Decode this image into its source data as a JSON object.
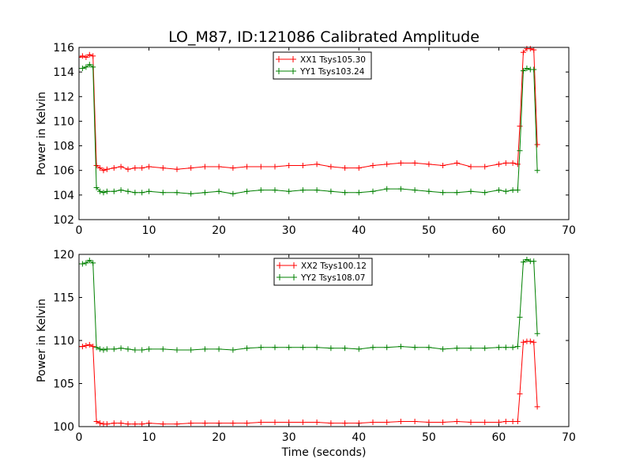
{
  "figure": {
    "title": "LO_M87, ID:121086 Calibrated Amplitude"
  },
  "chart_data": [
    {
      "type": "line",
      "title": "LO_M87, ID:121086 Calibrated Amplitude",
      "xlabel": "",
      "ylabel": "Power in Kelvin",
      "xlim": [
        0,
        70
      ],
      "ylim": [
        102,
        116
      ],
      "xticks": [
        0,
        10,
        20,
        30,
        40,
        50,
        60,
        70
      ],
      "yticks": [
        102,
        104,
        106,
        108,
        110,
        112,
        114,
        116
      ],
      "grid": false,
      "legend_position": "top-center",
      "series": [
        {
          "name": "XX1 Tsys105.30",
          "color": "#ff0000",
          "x": [
            0,
            0.5,
            1,
            1.5,
            2,
            2.5,
            3,
            3.5,
            4,
            5,
            6,
            7,
            8,
            9,
            10,
            12,
            14,
            16,
            18,
            20,
            22,
            24,
            26,
            28,
            30,
            32,
            34,
            36,
            38,
            40,
            42,
            44,
            46,
            48,
            50,
            52,
            54,
            56,
            58,
            60,
            61,
            62,
            62.7,
            63,
            63.5,
            64,
            64.5,
            65,
            65.5
          ],
          "y": [
            115.2,
            115.3,
            115.2,
            115.4,
            115.3,
            106.4,
            106.2,
            106.0,
            106.1,
            106.2,
            106.3,
            106.1,
            106.2,
            106.2,
            106.3,
            106.2,
            106.1,
            106.2,
            106.3,
            106.3,
            106.2,
            106.3,
            106.3,
            106.3,
            106.4,
            106.4,
            106.5,
            106.3,
            106.2,
            106.2,
            106.4,
            106.5,
            106.6,
            106.6,
            106.5,
            106.4,
            106.6,
            106.3,
            106.3,
            106.5,
            106.6,
            106.6,
            106.5,
            109.6,
            115.6,
            115.9,
            115.9,
            115.8,
            108.1
          ]
        },
        {
          "name": "YY1 Tsys103.24",
          "color": "#008000",
          "x": [
            0,
            0.5,
            1,
            1.5,
            2,
            2.5,
            3,
            3.5,
            4,
            5,
            6,
            7,
            8,
            9,
            10,
            12,
            14,
            16,
            18,
            20,
            22,
            24,
            26,
            28,
            30,
            32,
            34,
            36,
            38,
            40,
            42,
            44,
            46,
            48,
            50,
            52,
            54,
            56,
            58,
            60,
            61,
            62,
            62.7,
            63,
            63.5,
            64,
            64.5,
            65,
            65.5
          ],
          "y": [
            114.3,
            114.3,
            114.4,
            114.6,
            114.4,
            104.6,
            104.3,
            104.2,
            104.3,
            104.3,
            104.4,
            104.3,
            104.2,
            104.2,
            104.3,
            104.2,
            104.2,
            104.1,
            104.2,
            104.3,
            104.1,
            104.3,
            104.4,
            104.4,
            104.3,
            104.4,
            104.4,
            104.3,
            104.2,
            104.2,
            104.3,
            104.5,
            104.5,
            104.4,
            104.3,
            104.2,
            104.2,
            104.3,
            104.2,
            104.4,
            104.3,
            104.4,
            104.4,
            107.6,
            114.1,
            114.3,
            114.2,
            114.2,
            106.0
          ]
        }
      ]
    },
    {
      "type": "line",
      "title": "",
      "xlabel": "Time (seconds)",
      "ylabel": "Power in Kelvin",
      "xlim": [
        0,
        70
      ],
      "ylim": [
        100,
        120
      ],
      "xticks": [
        0,
        10,
        20,
        30,
        40,
        50,
        60,
        70
      ],
      "yticks": [
        100,
        105,
        110,
        115,
        120
      ],
      "grid": false,
      "legend_position": "top-center",
      "series": [
        {
          "name": "XX2 Tsys100.12",
          "color": "#ff0000",
          "x": [
            0,
            0.5,
            1,
            1.5,
            2,
            2.5,
            3,
            3.5,
            4,
            5,
            6,
            7,
            8,
            9,
            10,
            12,
            14,
            16,
            18,
            20,
            22,
            24,
            26,
            28,
            30,
            32,
            34,
            36,
            38,
            40,
            42,
            44,
            46,
            48,
            50,
            52,
            54,
            56,
            58,
            60,
            61,
            62,
            62.7,
            63,
            63.5,
            64,
            64.5,
            65,
            65.5
          ],
          "y": [
            109.3,
            109.3,
            109.4,
            109.5,
            109.3,
            100.6,
            100.4,
            100.3,
            100.3,
            100.4,
            100.4,
            100.3,
            100.3,
            100.3,
            100.4,
            100.3,
            100.3,
            100.4,
            100.4,
            100.4,
            100.4,
            100.4,
            100.5,
            100.5,
            100.5,
            100.5,
            100.5,
            100.4,
            100.4,
            100.4,
            100.5,
            100.5,
            100.6,
            100.6,
            100.5,
            100.5,
            100.6,
            100.5,
            100.5,
            100.5,
            100.6,
            100.6,
            100.6,
            103.8,
            109.8,
            109.9,
            109.9,
            109.8,
            102.3
          ]
        },
        {
          "name": "YY2 Tsys108.07",
          "color": "#008000",
          "x": [
            0,
            0.5,
            1,
            1.5,
            2,
            2.5,
            3,
            3.5,
            4,
            5,
            6,
            7,
            8,
            9,
            10,
            12,
            14,
            16,
            18,
            20,
            22,
            24,
            26,
            28,
            30,
            32,
            34,
            36,
            38,
            40,
            42,
            44,
            46,
            48,
            50,
            52,
            54,
            56,
            58,
            60,
            61,
            62,
            62.7,
            63,
            63.5,
            64,
            64.5,
            65,
            65.5
          ],
          "y": [
            118.9,
            118.9,
            119.0,
            119.3,
            119.0,
            109.2,
            109.0,
            108.9,
            109.0,
            109.0,
            109.1,
            109.0,
            108.9,
            108.9,
            109.0,
            109.0,
            108.9,
            108.9,
            109.0,
            109.0,
            108.9,
            109.1,
            109.2,
            109.2,
            109.2,
            109.2,
            109.2,
            109.1,
            109.1,
            109.0,
            109.2,
            109.2,
            109.3,
            109.2,
            109.2,
            109.0,
            109.1,
            109.1,
            109.1,
            109.2,
            109.2,
            109.2,
            109.3,
            112.7,
            119.1,
            119.4,
            119.2,
            119.2,
            110.8
          ]
        }
      ]
    }
  ]
}
